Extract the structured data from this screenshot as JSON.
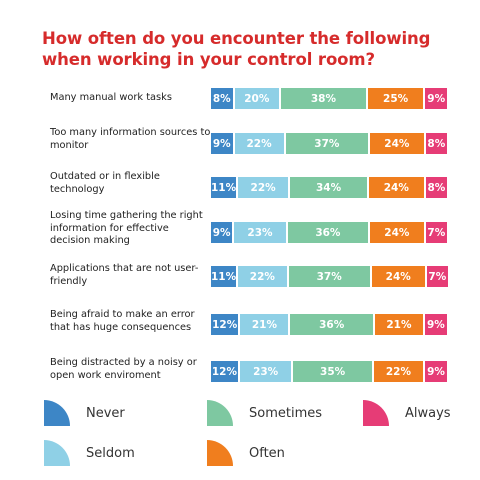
{
  "title": "How often do you encounter the following when working in your control room?",
  "colors": {
    "Never": "#3d86c6",
    "Seldom": "#8fd0e6",
    "Sometimes": "#7ec8a1",
    "Often": "#f07e1e",
    "Always": "#e63c76"
  },
  "chart_data": {
    "type": "bar",
    "stacked": true,
    "orientation": "horizontal",
    "title": "How often do you encounter the following when working in your control room?",
    "categories": [
      "Many manual work tasks",
      "Too many information sources to monitor",
      "Outdated or in flexible technology",
      "Losing time gathering the right information for effective decision making",
      "Applications that are not user-friendly",
      "Being afraid to make an error that has huge consequences",
      "Being distracted by a noisy or open work enviroment"
    ],
    "series": [
      {
        "name": "Never",
        "values": [
          8,
          9,
          11,
          9,
          11,
          12,
          12
        ]
      },
      {
        "name": "Seldom",
        "values": [
          20,
          22,
          22,
          23,
          22,
          21,
          23
        ]
      },
      {
        "name": "Sometimes",
        "values": [
          38,
          37,
          34,
          36,
          37,
          36,
          35
        ]
      },
      {
        "name": "Often",
        "values": [
          25,
          24,
          24,
          24,
          24,
          21,
          22
        ]
      },
      {
        "name": "Always",
        "values": [
          9,
          8,
          8,
          7,
          7,
          9,
          9
        ]
      }
    ],
    "legend": [
      "Never",
      "Sometimes",
      "Always",
      "Seldom",
      "Often"
    ],
    "legend_position": "bottom"
  }
}
